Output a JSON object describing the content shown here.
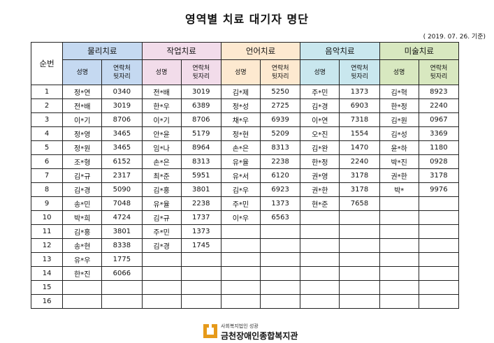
{
  "title": "영역별 치료 대기자 명단",
  "date_note": "( 2019. 07. 26. 기준)",
  "header": {
    "number_label": "순번",
    "name_label": "성명",
    "tel_label_line1": "연락처",
    "tel_label_line2": "뒷자리",
    "groups": [
      {
        "label": "물리치료",
        "color": "#c5d9f1"
      },
      {
        "label": "작업치료",
        "color": "#f2dcea"
      },
      {
        "label": "언어치료",
        "color": "#fde9d0"
      },
      {
        "label": "음악치료",
        "color": "#c9e7ee"
      },
      {
        "label": "미술치료",
        "color": "#d8e8c0"
      }
    ]
  },
  "rows": [
    {
      "no": "1",
      "c": [
        [
          "정*연",
          "0340"
        ],
        [
          "전*배",
          "3019"
        ],
        [
          "김*제",
          "5250"
        ],
        [
          "주*민",
          "1373"
        ],
        [
          "김*혁",
          "8923"
        ]
      ]
    },
    {
      "no": "2",
      "c": [
        [
          "전*배",
          "3019"
        ],
        [
          "한*우",
          "6389"
        ],
        [
          "정*성",
          "2725"
        ],
        [
          "김*경",
          "6903"
        ],
        [
          "한*정",
          "2240"
        ]
      ]
    },
    {
      "no": "3",
      "c": [
        [
          "이*기",
          "8706"
        ],
        [
          "이*기",
          "8706"
        ],
        [
          "채*우",
          "6939"
        ],
        [
          "이*연",
          "7318"
        ],
        [
          "김*원",
          "0967"
        ]
      ]
    },
    {
      "no": "4",
      "c": [
        [
          "정*영",
          "3465"
        ],
        [
          "안*윤",
          "5179"
        ],
        [
          "정*현",
          "5209"
        ],
        [
          "오*진",
          "1554"
        ],
        [
          "김*성",
          "3369"
        ]
      ]
    },
    {
      "no": "5",
      "c": [
        [
          "정*원",
          "3465"
        ],
        [
          "임*나",
          "8964"
        ],
        [
          "손*은",
          "8313"
        ],
        [
          "김*완",
          "1470"
        ],
        [
          "윤*하",
          "1180"
        ]
      ]
    },
    {
      "no": "6",
      "c": [
        [
          "조*형",
          "6152"
        ],
        [
          "손*은",
          "8313"
        ],
        [
          "유*율",
          "2238"
        ],
        [
          "한*정",
          "2240"
        ],
        [
          "박*진",
          "0928"
        ]
      ]
    },
    {
      "no": "7",
      "c": [
        [
          "김*규",
          "2317"
        ],
        [
          "최*준",
          "5951"
        ],
        [
          "유*서",
          "6120"
        ],
        [
          "권*영",
          "3178"
        ],
        [
          "권*한",
          "3178"
        ]
      ]
    },
    {
      "no": "8",
      "c": [
        [
          "김*경",
          "5090"
        ],
        [
          "김*홍",
          "3801"
        ],
        [
          "김*우",
          "6923"
        ],
        [
          "권*한",
          "3178"
        ],
        [
          "박*",
          "9976"
        ]
      ]
    },
    {
      "no": "9",
      "c": [
        [
          "송*민",
          "7048"
        ],
        [
          "유*율",
          "2238"
        ],
        [
          "주*민",
          "1373"
        ],
        [
          "현*준",
          "7658"
        ],
        [
          "",
          ""
        ]
      ]
    },
    {
      "no": "10",
      "c": [
        [
          "박*희",
          "4724"
        ],
        [
          "김*규",
          "1737"
        ],
        [
          "이*우",
          "6563"
        ],
        [
          "",
          ""
        ],
        [
          "",
          ""
        ]
      ]
    },
    {
      "no": "11",
      "c": [
        [
          "김*홍",
          "3801"
        ],
        [
          "주*민",
          "1373"
        ],
        [
          "",
          ""
        ],
        [
          "",
          ""
        ],
        [
          "",
          ""
        ]
      ]
    },
    {
      "no": "12",
      "c": [
        [
          "송*현",
          "8338"
        ],
        [
          "김*경",
          "1745"
        ],
        [
          "",
          ""
        ],
        [
          "",
          ""
        ],
        [
          "",
          ""
        ]
      ]
    },
    {
      "no": "13",
      "c": [
        [
          "유*우",
          "1775"
        ],
        [
          "",
          ""
        ],
        [
          "",
          ""
        ],
        [
          "",
          ""
        ],
        [
          "",
          ""
        ]
      ]
    },
    {
      "no": "14",
      "c": [
        [
          "한*진",
          "6066"
        ],
        [
          "",
          ""
        ],
        [
          "",
          ""
        ],
        [
          "",
          ""
        ],
        [
          "",
          ""
        ]
      ]
    },
    {
      "no": "15",
      "c": [
        [
          "",
          ""
        ],
        [
          "",
          ""
        ],
        [
          "",
          ""
        ],
        [
          "",
          ""
        ],
        [
          "",
          ""
        ]
      ]
    },
    {
      "no": "16",
      "c": [
        [
          "",
          ""
        ],
        [
          "",
          ""
        ],
        [
          "",
          ""
        ],
        [
          "",
          ""
        ],
        [
          "",
          ""
        ]
      ]
    }
  ],
  "footer": {
    "org_sub": "사회복지법인 성광",
    "org_name": "금천장애인종합복지관",
    "logo_icon": "welfare-center-logo-icon",
    "logo_color": "#e69a1a"
  }
}
